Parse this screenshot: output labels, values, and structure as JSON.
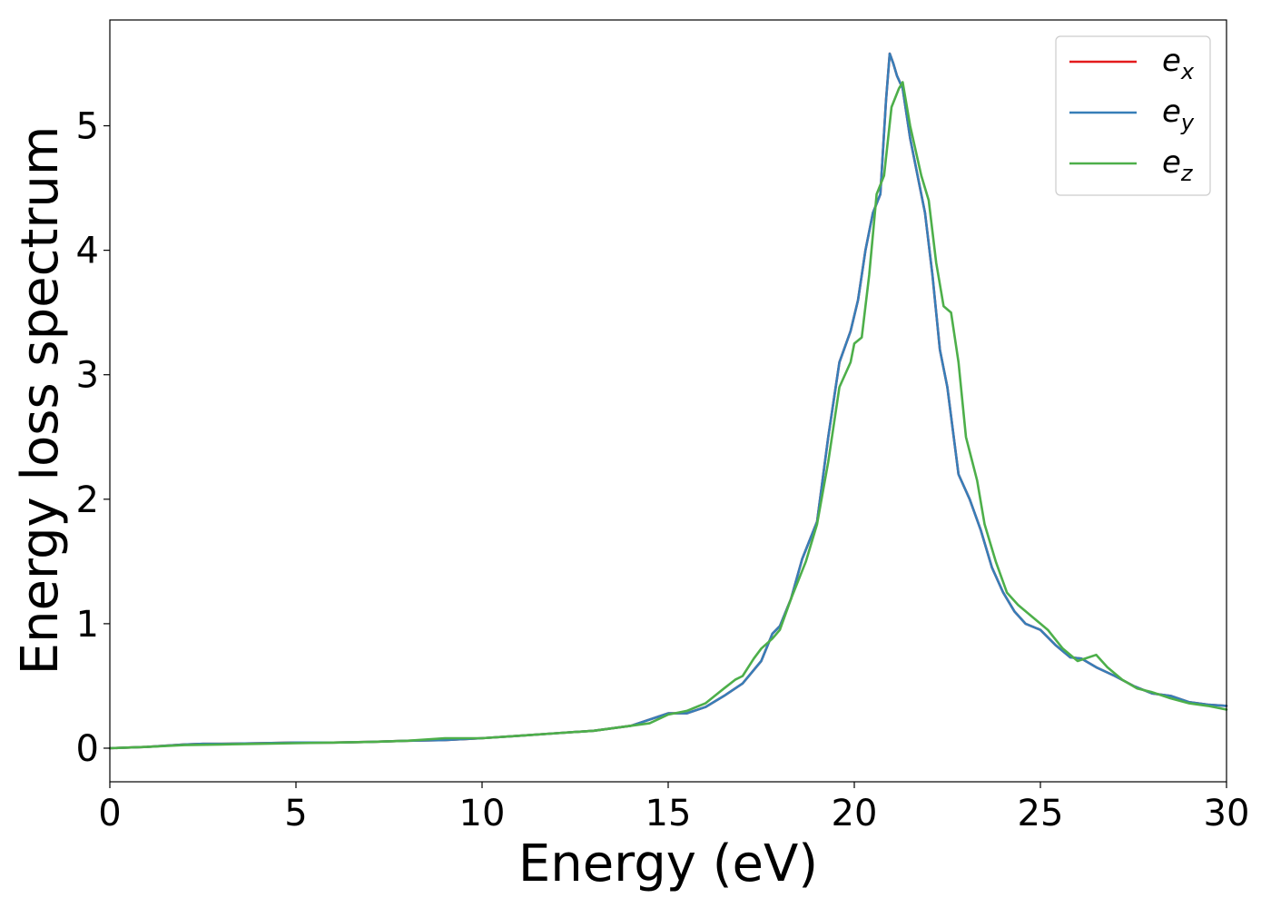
{
  "chart_data": {
    "type": "line",
    "title": "",
    "xlabel": "Energy (eV)",
    "ylabel": "Energy loss spectrum",
    "xlim": [
      0,
      30
    ],
    "ylim": [
      -0.27,
      5.85
    ],
    "xticks": [
      0,
      5,
      10,
      15,
      20,
      25,
      30
    ],
    "yticks": [
      0,
      1,
      2,
      3,
      4,
      5
    ],
    "grid": false,
    "legend_position": "top-right",
    "series": [
      {
        "name": "e_x",
        "legend_base": "e",
        "legend_sub": "x",
        "color": "#e41a1c",
        "x": [
          0,
          1,
          2,
          2.5,
          3,
          4,
          5,
          6,
          7,
          8,
          9,
          10,
          11,
          12,
          13,
          13.5,
          14,
          14.5,
          15,
          15.5,
          16,
          16.5,
          17,
          17.5,
          17.8,
          18,
          18.3,
          18.6,
          19,
          19.3,
          19.6,
          19.9,
          20.1,
          20.3,
          20.5,
          20.7,
          20.85,
          20.95,
          21.05,
          21.15,
          21.3,
          21.5,
          21.7,
          21.9,
          22.1,
          22.3,
          22.5,
          22.8,
          23.1,
          23.4,
          23.7,
          24,
          24.3,
          24.6,
          25,
          25.4,
          25.8,
          26.1,
          26.5,
          27,
          27.5,
          28,
          28.5,
          29,
          29.5,
          30
        ],
        "y": [
          0,
          0.01,
          0.03,
          0.035,
          0.035,
          0.04,
          0.045,
          0.045,
          0.05,
          0.06,
          0.065,
          0.08,
          0.1,
          0.12,
          0.14,
          0.16,
          0.18,
          0.23,
          0.28,
          0.28,
          0.33,
          0.42,
          0.52,
          0.7,
          0.92,
          0.98,
          1.2,
          1.52,
          1.82,
          2.5,
          3.1,
          3.35,
          3.6,
          4.0,
          4.3,
          4.45,
          5.2,
          5.58,
          5.5,
          5.4,
          5.3,
          4.9,
          4.6,
          4.3,
          3.8,
          3.2,
          2.9,
          2.2,
          2.0,
          1.75,
          1.45,
          1.25,
          1.1,
          1.0,
          0.95,
          0.83,
          0.73,
          0.72,
          0.65,
          0.58,
          0.5,
          0.44,
          0.42,
          0.37,
          0.35,
          0.34
        ]
      },
      {
        "name": "e_y",
        "legend_base": "e",
        "legend_sub": "y",
        "color": "#377eb8",
        "x": [
          0,
          1,
          2,
          2.5,
          3,
          4,
          5,
          6,
          7,
          8,
          9,
          10,
          11,
          12,
          13,
          13.5,
          14,
          14.5,
          15,
          15.5,
          16,
          16.5,
          17,
          17.5,
          17.8,
          18,
          18.3,
          18.6,
          19,
          19.3,
          19.6,
          19.9,
          20.1,
          20.3,
          20.5,
          20.7,
          20.85,
          20.95,
          21.05,
          21.15,
          21.3,
          21.5,
          21.7,
          21.9,
          22.1,
          22.3,
          22.5,
          22.8,
          23.1,
          23.4,
          23.7,
          24,
          24.3,
          24.6,
          25,
          25.4,
          25.8,
          26.1,
          26.5,
          27,
          27.5,
          28,
          28.5,
          29,
          29.5,
          30
        ],
        "y": [
          0,
          0.01,
          0.03,
          0.035,
          0.035,
          0.04,
          0.045,
          0.045,
          0.05,
          0.06,
          0.065,
          0.08,
          0.1,
          0.12,
          0.14,
          0.16,
          0.18,
          0.23,
          0.28,
          0.28,
          0.33,
          0.42,
          0.52,
          0.7,
          0.92,
          0.98,
          1.2,
          1.52,
          1.82,
          2.5,
          3.1,
          3.35,
          3.6,
          4.0,
          4.3,
          4.45,
          5.2,
          5.58,
          5.5,
          5.4,
          5.3,
          4.9,
          4.6,
          4.3,
          3.8,
          3.2,
          2.9,
          2.2,
          2.0,
          1.75,
          1.45,
          1.25,
          1.1,
          1.0,
          0.95,
          0.83,
          0.73,
          0.72,
          0.65,
          0.58,
          0.5,
          0.44,
          0.42,
          0.37,
          0.35,
          0.34
        ]
      },
      {
        "name": "e_z",
        "legend_base": "e",
        "legend_sub": "z",
        "color": "#4daf4a",
        "x": [
          0,
          1,
          2,
          3,
          4,
          5,
          6,
          7,
          8,
          9,
          10,
          11,
          12,
          13,
          13.5,
          14,
          14.5,
          15,
          15.5,
          16,
          16.5,
          16.8,
          17,
          17.3,
          17.5,
          17.8,
          18,
          18.3,
          18.7,
          19,
          19.3,
          19.6,
          19.9,
          20.0,
          20.2,
          20.4,
          20.6,
          20.8,
          21.0,
          21.2,
          21.3,
          21.5,
          21.8,
          22.0,
          22.2,
          22.4,
          22.6,
          22.8,
          23.0,
          23.3,
          23.5,
          23.8,
          24.1,
          24.4,
          24.8,
          25.2,
          25.6,
          26.0,
          26.5,
          26.8,
          27.2,
          27.6,
          28.0,
          28.5,
          29.0,
          29.5,
          30
        ],
        "y": [
          0,
          0.01,
          0.025,
          0.03,
          0.035,
          0.04,
          0.045,
          0.05,
          0.06,
          0.08,
          0.08,
          0.1,
          0.12,
          0.14,
          0.16,
          0.18,
          0.2,
          0.27,
          0.3,
          0.36,
          0.48,
          0.55,
          0.58,
          0.72,
          0.8,
          0.88,
          0.95,
          1.2,
          1.5,
          1.8,
          2.3,
          2.9,
          3.1,
          3.25,
          3.3,
          3.8,
          4.45,
          4.6,
          5.15,
          5.3,
          5.35,
          5.0,
          4.6,
          4.4,
          3.9,
          3.55,
          3.5,
          3.1,
          2.5,
          2.15,
          1.8,
          1.5,
          1.25,
          1.15,
          1.05,
          0.95,
          0.8,
          0.7,
          0.75,
          0.65,
          0.55,
          0.48,
          0.45,
          0.4,
          0.36,
          0.34,
          0.31
        ]
      }
    ]
  }
}
